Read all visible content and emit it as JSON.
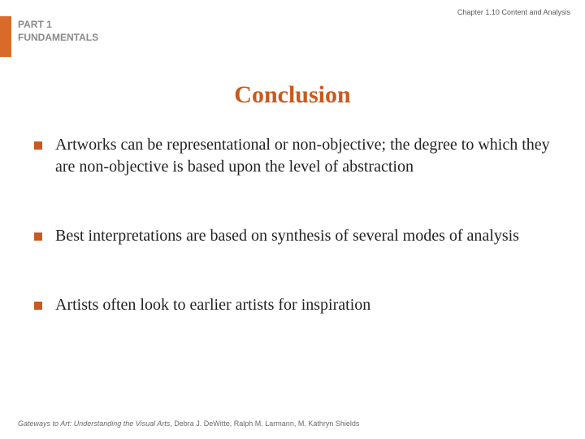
{
  "colors": {
    "accent": "#c85a1f",
    "accent_bar": "#d96b2a",
    "part_label": "#8a8a8a",
    "chapter_label": "#5a5a5a",
    "body_text": "#222222",
    "footer_text": "#6a6a6a",
    "background": "#ffffff"
  },
  "typography": {
    "title_fontsize": 30,
    "bullet_fontsize": 20,
    "label_fontsize": 12,
    "small_fontsize": 9,
    "body_font": "Georgia, Times New Roman, serif",
    "label_font": "Arial, Helvetica, sans-serif"
  },
  "header": {
    "chapter": "Chapter 1.10  Content and Analysis",
    "part_line1": "PART 1",
    "part_line2": "FUNDAMENTALS"
  },
  "title": "Conclusion",
  "bullets": [
    "Artworks can be representational or non-objective; the degree to which they are non-objective is based upon the level of abstraction",
    "Best interpretations are based on synthesis of several modes of analysis",
    "Artists often look to earlier artists for inspiration"
  ],
  "footer": {
    "book_title": "Gateways to Art: Understanding the Visual Arts",
    "authors": ", Debra J. DeWitte, Ralph M. Larmann, M. Kathryn Shields"
  }
}
